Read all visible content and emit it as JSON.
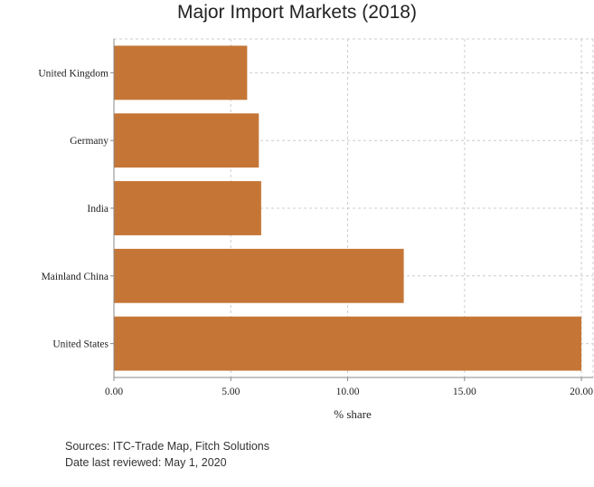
{
  "chart_data": {
    "type": "bar",
    "orientation": "horizontal",
    "title": "Major Import Markets (2018)",
    "xlabel": "% share",
    "ylabel": "",
    "categories": [
      "United Kingdom",
      "Germany",
      "India",
      "Mainland China",
      "United States"
    ],
    "values": [
      5.7,
      6.2,
      6.3,
      12.4,
      20.0
    ],
    "xlim": [
      0,
      20.5
    ],
    "xticks": [
      0,
      5,
      10,
      15,
      20
    ],
    "xtick_labels": [
      "0.00",
      "5.00",
      "10.00",
      "15.00",
      "20.00"
    ],
    "grid": true,
    "bar_color": "#c57636"
  },
  "footer": {
    "sources": "Sources: ITC-Trade Map, Fitch Solutions",
    "reviewed": "Date last reviewed: May 1, 2020"
  }
}
